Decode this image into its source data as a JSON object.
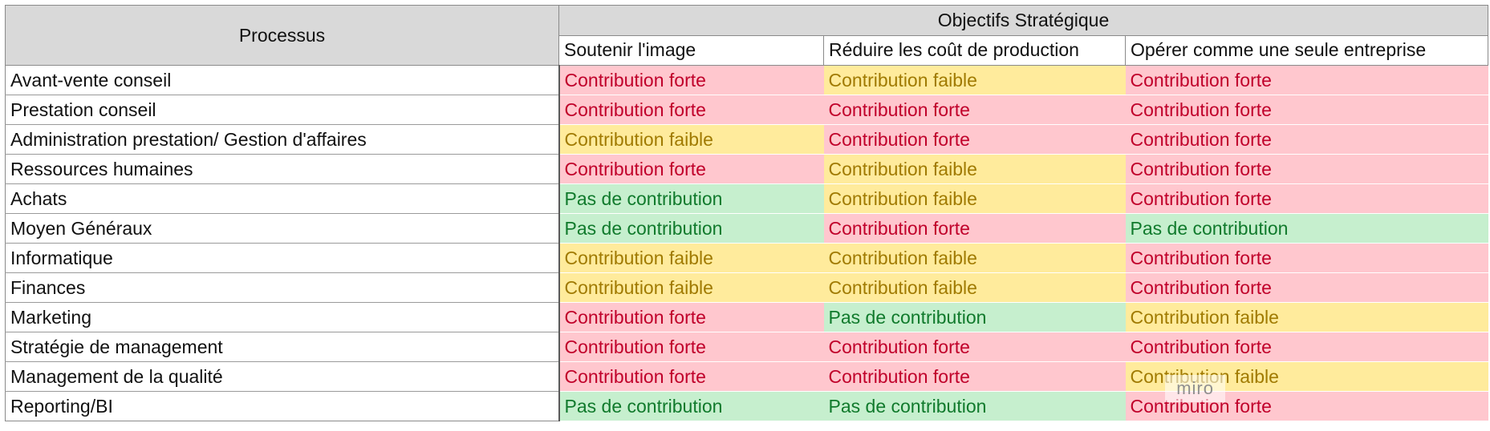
{
  "header": {
    "process_label": "Processus",
    "objectives_label": "Objectifs Stratégique",
    "objectives": [
      "Soutenir l'image",
      "Réduire les coût de production",
      "Opérer comme  une seule entreprise"
    ]
  },
  "levels": {
    "forte": "Contribution forte",
    "faible": "Contribution faible",
    "pas": "Pas de contribution"
  },
  "level_colors": {
    "forte": {
      "background": "#ffc7ce",
      "text": "#c0002a"
    },
    "faible": {
      "background": "#ffeb9c",
      "text": "#a07a00"
    },
    "pas": {
      "background": "#c6efce",
      "text": "#107a2c"
    }
  },
  "rows": [
    {
      "process": "Avant-vente conseil",
      "values": [
        "forte",
        "faible",
        "forte"
      ]
    },
    {
      "process": "Prestation conseil",
      "values": [
        "forte",
        "forte",
        "forte"
      ]
    },
    {
      "process": "Administration prestation/ Gestion d'affaires",
      "values": [
        "faible",
        "forte",
        "forte"
      ]
    },
    {
      "process": "Ressources humaines",
      "values": [
        "forte",
        "faible",
        "forte"
      ]
    },
    {
      "process": "Achats",
      "values": [
        "pas",
        "faible",
        "forte"
      ]
    },
    {
      "process": "Moyen Généraux",
      "values": [
        "pas",
        "forte",
        "pas"
      ]
    },
    {
      "process": "Informatique",
      "values": [
        "faible",
        "faible",
        "forte"
      ]
    },
    {
      "process": "Finances",
      "values": [
        "faible",
        "faible",
        "forte"
      ]
    },
    {
      "process": "Marketing",
      "values": [
        "forte",
        "pas",
        "faible"
      ]
    },
    {
      "process": "Stratégie de management",
      "values": [
        "forte",
        "forte",
        "forte"
      ]
    },
    {
      "process": "Management de la qualité",
      "values": [
        "forte",
        "forte",
        "faible"
      ]
    },
    {
      "process": "Reporting/BI",
      "values": [
        "pas",
        "pas",
        "forte"
      ]
    }
  ],
  "watermark": "miro"
}
